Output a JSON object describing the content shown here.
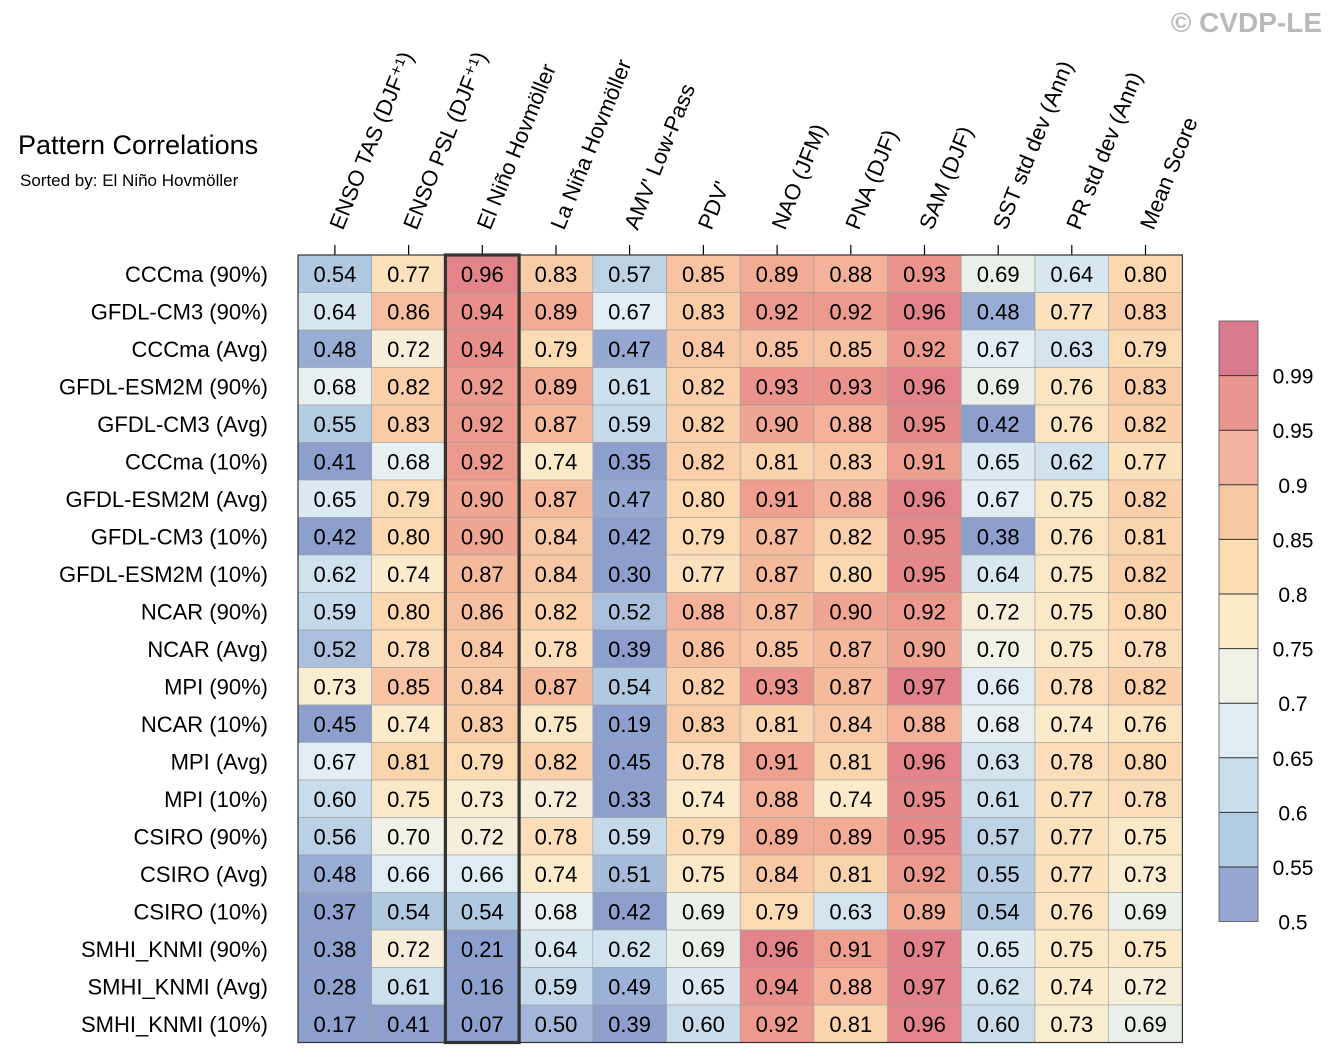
{
  "watermark": "© CVDP-LE",
  "chart_data": {
    "type": "heatmap",
    "title": "Pattern Correlations",
    "subtitle": "Sorted by: El Niño Hovmöller",
    "columns": [
      "ENSO TAS (DJF⁺¹)",
      "ENSO PSL (DJF⁺¹)",
      "El Niño Hovmöller",
      "La Niña Hovmöller",
      "AMV' Low-Pass",
      "PDV'",
      "NAO (JFM)",
      "PNA (DJF)",
      "SAM (DJF)",
      "SST std dev (Ann)",
      "PR std dev (Ann)",
      "Mean Score"
    ],
    "highlighted_column": "El Niño Hovmöller",
    "rows": [
      "CCCma (90%)",
      "GFDL-CM3 (90%)",
      "CCCma (Avg)",
      "GFDL-ESM2M (90%)",
      "GFDL-CM3 (Avg)",
      "CCCma (10%)",
      "GFDL-ESM2M (Avg)",
      "GFDL-CM3 (10%)",
      "GFDL-ESM2M (10%)",
      "NCAR (90%)",
      "NCAR (Avg)",
      "MPI (90%)",
      "NCAR (10%)",
      "MPI (Avg)",
      "MPI (10%)",
      "CSIRO (90%)",
      "CSIRO (Avg)",
      "CSIRO (10%)",
      "SMHI_KNMI (90%)",
      "SMHI_KNMI (Avg)",
      "SMHI_KNMI (10%)"
    ],
    "values": [
      [
        "0.54",
        "0.77",
        "0.96",
        "0.83",
        "0.57",
        "0.85",
        "0.89",
        "0.88",
        "0.93",
        "0.69",
        "0.64",
        "0.80"
      ],
      [
        "0.64",
        "0.86",
        "0.94",
        "0.89",
        "0.67",
        "0.83",
        "0.92",
        "0.92",
        "0.96",
        "0.48",
        "0.77",
        "0.83"
      ],
      [
        "0.48",
        "0.72",
        "0.94",
        "0.79",
        "0.47",
        "0.84",
        "0.85",
        "0.85",
        "0.92",
        "0.67",
        "0.63",
        "0.79"
      ],
      [
        "0.68",
        "0.82",
        "0.92",
        "0.89",
        "0.61",
        "0.82",
        "0.93",
        "0.93",
        "0.96",
        "0.69",
        "0.76",
        "0.83"
      ],
      [
        "0.55",
        "0.83",
        "0.92",
        "0.87",
        "0.59",
        "0.82",
        "0.90",
        "0.88",
        "0.95",
        "0.42",
        "0.76",
        "0.82"
      ],
      [
        "0.41",
        "0.68",
        "0.92",
        "0.74",
        "0.35",
        "0.82",
        "0.81",
        "0.83",
        "0.91",
        "0.65",
        "0.62",
        "0.77"
      ],
      [
        "0.65",
        "0.79",
        "0.90",
        "0.87",
        "0.47",
        "0.80",
        "0.91",
        "0.88",
        "0.96",
        "0.67",
        "0.75",
        "0.82"
      ],
      [
        "0.42",
        "0.80",
        "0.90",
        "0.84",
        "0.42",
        "0.79",
        "0.87",
        "0.82",
        "0.95",
        "0.38",
        "0.76",
        "0.81"
      ],
      [
        "0.62",
        "0.74",
        "0.87",
        "0.84",
        "0.30",
        "0.77",
        "0.87",
        "0.80",
        "0.95",
        "0.64",
        "0.75",
        "0.82"
      ],
      [
        "0.59",
        "0.80",
        "0.86",
        "0.82",
        "0.52",
        "0.88",
        "0.87",
        "0.90",
        "0.92",
        "0.72",
        "0.75",
        "0.80"
      ],
      [
        "0.52",
        "0.78",
        "0.84",
        "0.78",
        "0.39",
        "0.86",
        "0.85",
        "0.87",
        "0.90",
        "0.70",
        "0.75",
        "0.78"
      ],
      [
        "0.73",
        "0.85",
        "0.84",
        "0.87",
        "0.54",
        "0.82",
        "0.93",
        "0.87",
        "0.97",
        "0.66",
        "0.78",
        "0.82"
      ],
      [
        "0.45",
        "0.74",
        "0.83",
        "0.75",
        "0.19",
        "0.83",
        "0.81",
        "0.84",
        "0.88",
        "0.68",
        "0.74",
        "0.76"
      ],
      [
        "0.67",
        "0.81",
        "0.79",
        "0.82",
        "0.45",
        "0.78",
        "0.91",
        "0.81",
        "0.96",
        "0.63",
        "0.78",
        "0.80"
      ],
      [
        "0.60",
        "0.75",
        "0.73",
        "0.72",
        "0.33",
        "0.74",
        "0.88",
        "0.74",
        "0.95",
        "0.61",
        "0.77",
        "0.78"
      ],
      [
        "0.56",
        "0.70",
        "0.72",
        "0.78",
        "0.59",
        "0.79",
        "0.89",
        "0.89",
        "0.95",
        "0.57",
        "0.77",
        "0.75"
      ],
      [
        "0.48",
        "0.66",
        "0.66",
        "0.74",
        "0.51",
        "0.75",
        "0.84",
        "0.81",
        "0.92",
        "0.55",
        "0.77",
        "0.73"
      ],
      [
        "0.37",
        "0.54",
        "0.54",
        "0.68",
        "0.42",
        "0.69",
        "0.79",
        "0.63",
        "0.89",
        "0.54",
        "0.76",
        "0.69"
      ],
      [
        "0.38",
        "0.72",
        "0.21",
        "0.64",
        "0.62",
        "0.69",
        "0.96",
        "0.91",
        "0.97",
        "0.65",
        "0.75",
        "0.75"
      ],
      [
        "0.28",
        "0.61",
        "0.16",
        "0.59",
        "0.49",
        "0.65",
        "0.94",
        "0.88",
        "0.97",
        "0.62",
        "0.74",
        "0.72"
      ],
      [
        "0.17",
        "0.41",
        "0.07",
        "0.50",
        "0.39",
        "0.60",
        "0.92",
        "0.81",
        "0.96",
        "0.60",
        "0.73",
        "0.69"
      ]
    ],
    "colorbar": {
      "labels": [
        "0.99",
        "0.95",
        "0.9",
        "0.85",
        "0.8",
        "0.75",
        "0.7",
        "0.65",
        "0.6",
        "0.55",
        "0.5"
      ],
      "colors": [
        "#d97b8c",
        "#e99590",
        "#f3b3a0",
        "#f8c7a4",
        "#fbdbb1",
        "#fbebc6",
        "#f1f1e7",
        "#dfedf2",
        "#c9e0ec",
        "#b1cde3",
        "#96a8d1"
      ]
    }
  }
}
